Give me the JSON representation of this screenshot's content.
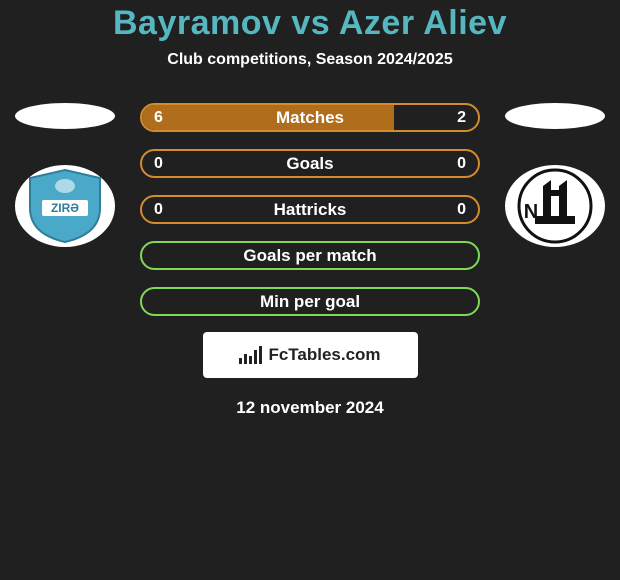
{
  "title": "Bayramov vs Azer Aliev",
  "subtitle": "Club competitions, Season 2024/2025",
  "date": "12 november 2024",
  "watermark": "FcTables.com",
  "colors": {
    "title": "#56b7c1",
    "bg": "#202020",
    "orange_border": "#d38b2d",
    "orange_fill": "#b06e1d",
    "green_border": "#7ed957",
    "green_fill": "#4aa52f",
    "text": "#ffffff"
  },
  "bars": [
    {
      "label": "Matches",
      "left": "6",
      "right": "2",
      "type": "split",
      "left_val": 6,
      "right_val": 2,
      "fill_pct": 75
    },
    {
      "label": "Goals",
      "left": "0",
      "right": "0",
      "type": "orange_empty"
    },
    {
      "label": "Hattricks",
      "left": "0",
      "right": "0",
      "type": "orange_empty"
    },
    {
      "label": "Goals per match",
      "left": "",
      "right": "",
      "type": "green_empty"
    },
    {
      "label": "Min per goal",
      "left": "",
      "right": "",
      "type": "green_empty"
    }
  ],
  "left_club": {
    "name": "Zira",
    "bg": "#4aa8c9"
  },
  "right_club": {
    "name": "Neftchi",
    "bg": "#ffffff"
  }
}
